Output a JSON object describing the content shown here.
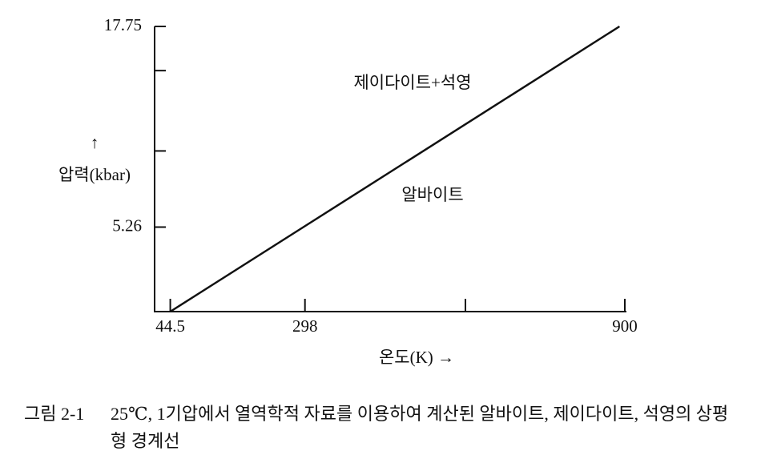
{
  "chart_data": {
    "type": "line",
    "y_label": "압력(kbar)",
    "y_arrow": "↑",
    "x_label": "온도(K) →",
    "annotations": [
      "제이다이트+석영",
      "알바이트"
    ],
    "xlim": [
      15,
      900
    ],
    "xticks": [
      44.5,
      298,
      900
    ],
    "minor_xticks": [
      600
    ],
    "ylim": [
      0,
      17.75
    ],
    "yticks": [
      5.26,
      17.75
    ],
    "minor_yticks": [
      10,
      15
    ],
    "series": [
      {
        "name": "상평형 경계선",
        "color": "#111111",
        "x": [
          44.5,
          890
        ],
        "values": [
          0,
          17.75
        ]
      }
    ],
    "show_legend": false
  },
  "caption": {
    "label": "그림 2-1",
    "text": "25℃, 1기압에서 열역학적 자료를 이용하여 계산된 알바이트, 제이다이트, 석영의 상평형 경계선"
  }
}
